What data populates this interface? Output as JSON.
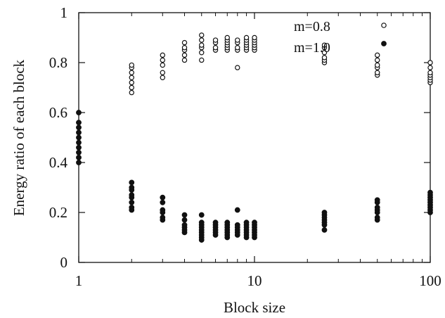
{
  "chart_data": {
    "type": "scatter",
    "title": "",
    "xlabel": "Block size",
    "ylabel": "Energy ratio of each block",
    "x_scale": "log",
    "xlim": [
      1,
      100
    ],
    "ylim": [
      0,
      1
    ],
    "x_ticks": [
      1,
      10,
      100
    ],
    "x_tick_labels": [
      "1",
      "10",
      "100"
    ],
    "y_ticks": [
      0,
      0.2,
      0.4,
      0.6,
      0.8,
      1
    ],
    "y_tick_labels": [
      "0",
      "0.2",
      "0.4",
      "0.6",
      "0.8",
      "1"
    ],
    "grid": false,
    "legend_position": "top-right",
    "series": [
      {
        "name": "m=0.8",
        "marker": "open-circle",
        "points": [
          [
            1,
            0.4
          ],
          [
            1,
            0.42
          ],
          [
            1,
            0.44
          ],
          [
            1,
            0.46
          ],
          [
            1,
            0.48
          ],
          [
            1,
            0.5
          ],
          [
            1,
            0.52
          ],
          [
            1,
            0.54
          ],
          [
            1,
            0.56
          ],
          [
            1,
            0.6
          ],
          [
            2,
            0.68
          ],
          [
            2,
            0.7
          ],
          [
            2,
            0.72
          ],
          [
            2,
            0.74
          ],
          [
            2,
            0.76
          ],
          [
            2,
            0.78
          ],
          [
            2,
            0.79
          ],
          [
            3,
            0.74
          ],
          [
            3,
            0.76
          ],
          [
            3,
            0.79
          ],
          [
            3,
            0.81
          ],
          [
            3,
            0.83
          ],
          [
            4,
            0.81
          ],
          [
            4,
            0.83
          ],
          [
            4,
            0.85
          ],
          [
            4,
            0.86
          ],
          [
            4,
            0.88
          ],
          [
            5,
            0.81
          ],
          [
            5,
            0.84
          ],
          [
            5,
            0.86
          ],
          [
            5,
            0.87
          ],
          [
            5,
            0.89
          ],
          [
            5,
            0.91
          ],
          [
            6,
            0.85
          ],
          [
            6,
            0.86
          ],
          [
            6,
            0.88
          ],
          [
            6,
            0.89
          ],
          [
            7,
            0.85
          ],
          [
            7,
            0.86
          ],
          [
            7,
            0.87
          ],
          [
            7,
            0.88
          ],
          [
            7,
            0.89
          ],
          [
            7,
            0.9
          ],
          [
            8,
            0.78
          ],
          [
            8,
            0.85
          ],
          [
            8,
            0.86
          ],
          [
            8,
            0.88
          ],
          [
            8,
            0.89
          ],
          [
            9,
            0.85
          ],
          [
            9,
            0.86
          ],
          [
            9,
            0.87
          ],
          [
            9,
            0.88
          ],
          [
            9,
            0.89
          ],
          [
            9,
            0.9
          ],
          [
            10,
            0.85
          ],
          [
            10,
            0.86
          ],
          [
            10,
            0.87
          ],
          [
            10,
            0.88
          ],
          [
            10,
            0.89
          ],
          [
            10,
            0.9
          ],
          [
            25,
            0.8
          ],
          [
            25,
            0.81
          ],
          [
            25,
            0.82
          ],
          [
            25,
            0.84
          ],
          [
            25,
            0.86
          ],
          [
            25,
            0.87
          ],
          [
            50,
            0.75
          ],
          [
            50,
            0.76
          ],
          [
            50,
            0.78
          ],
          [
            50,
            0.79
          ],
          [
            50,
            0.81
          ],
          [
            50,
            0.83
          ],
          [
            100,
            0.72
          ],
          [
            100,
            0.73
          ],
          [
            100,
            0.74
          ],
          [
            100,
            0.75
          ],
          [
            100,
            0.76
          ],
          [
            100,
            0.78
          ],
          [
            100,
            0.8
          ]
        ]
      },
      {
        "name": "m=1.0",
        "marker": "filled-circle",
        "points": [
          [
            1,
            0.4
          ],
          [
            1,
            0.42
          ],
          [
            1,
            0.44
          ],
          [
            1,
            0.46
          ],
          [
            1,
            0.48
          ],
          [
            1,
            0.5
          ],
          [
            1,
            0.52
          ],
          [
            1,
            0.54
          ],
          [
            1,
            0.56
          ],
          [
            1,
            0.6
          ],
          [
            2,
            0.21
          ],
          [
            2,
            0.22
          ],
          [
            2,
            0.24
          ],
          [
            2,
            0.26
          ],
          [
            2,
            0.27
          ],
          [
            2,
            0.29
          ],
          [
            2,
            0.3
          ],
          [
            2,
            0.32
          ],
          [
            3,
            0.17
          ],
          [
            3,
            0.18
          ],
          [
            3,
            0.2
          ],
          [
            3,
            0.21
          ],
          [
            3,
            0.24
          ],
          [
            3,
            0.26
          ],
          [
            4,
            0.12
          ],
          [
            4,
            0.13
          ],
          [
            4,
            0.14
          ],
          [
            4,
            0.15
          ],
          [
            4,
            0.17
          ],
          [
            4,
            0.19
          ],
          [
            5,
            0.09
          ],
          [
            5,
            0.1
          ],
          [
            5,
            0.11
          ],
          [
            5,
            0.12
          ],
          [
            5,
            0.13
          ],
          [
            5,
            0.14
          ],
          [
            5,
            0.15
          ],
          [
            5,
            0.16
          ],
          [
            5,
            0.19
          ],
          [
            6,
            0.11
          ],
          [
            6,
            0.12
          ],
          [
            6,
            0.13
          ],
          [
            6,
            0.14
          ],
          [
            6,
            0.15
          ],
          [
            6,
            0.16
          ],
          [
            7,
            0.1
          ],
          [
            7,
            0.11
          ],
          [
            7,
            0.12
          ],
          [
            7,
            0.13
          ],
          [
            7,
            0.14
          ],
          [
            7,
            0.15
          ],
          [
            7,
            0.16
          ],
          [
            8,
            0.11
          ],
          [
            8,
            0.12
          ],
          [
            8,
            0.13
          ],
          [
            8,
            0.14
          ],
          [
            8,
            0.15
          ],
          [
            8,
            0.21
          ],
          [
            9,
            0.1
          ],
          [
            9,
            0.11
          ],
          [
            9,
            0.12
          ],
          [
            9,
            0.13
          ],
          [
            9,
            0.14
          ],
          [
            9,
            0.15
          ],
          [
            9,
            0.16
          ],
          [
            10,
            0.1
          ],
          [
            10,
            0.11
          ],
          [
            10,
            0.12
          ],
          [
            10,
            0.13
          ],
          [
            10,
            0.14
          ],
          [
            10,
            0.15
          ],
          [
            10,
            0.16
          ],
          [
            25,
            0.13
          ],
          [
            25,
            0.15
          ],
          [
            25,
            0.16
          ],
          [
            25,
            0.17
          ],
          [
            25,
            0.18
          ],
          [
            25,
            0.19
          ],
          [
            25,
            0.2
          ],
          [
            50,
            0.17
          ],
          [
            50,
            0.18
          ],
          [
            50,
            0.2
          ],
          [
            50,
            0.21
          ],
          [
            50,
            0.22
          ],
          [
            50,
            0.24
          ],
          [
            50,
            0.25
          ],
          [
            100,
            0.2
          ],
          [
            100,
            0.21
          ],
          [
            100,
            0.22
          ],
          [
            100,
            0.23
          ],
          [
            100,
            0.24
          ],
          [
            100,
            0.25
          ],
          [
            100,
            0.26
          ],
          [
            100,
            0.27
          ],
          [
            100,
            0.28
          ]
        ]
      }
    ]
  }
}
